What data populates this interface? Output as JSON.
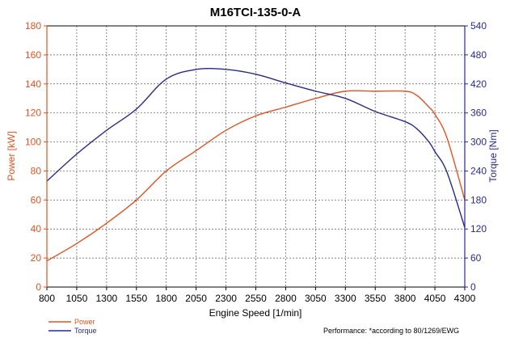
{
  "chart_data": {
    "type": "line",
    "title": "M16TCI-135-0-A",
    "xlabel": "Engine Speed [1/min]",
    "ylabel_left": "Power [kW]",
    "ylabel_right": "Torque [Nm]",
    "xlim": [
      800,
      4300
    ],
    "ylim_left": [
      0,
      180
    ],
    "ylim_right": [
      0,
      540
    ],
    "x_ticks": [
      800,
      1050,
      1300,
      1550,
      1800,
      2050,
      2300,
      2550,
      2800,
      3050,
      3300,
      3550,
      3800,
      4050,
      4300
    ],
    "y_ticks_left": [
      0,
      20,
      40,
      60,
      80,
      100,
      120,
      140,
      160,
      180
    ],
    "y_ticks_right": [
      0,
      60,
      120,
      180,
      240,
      300,
      360,
      420,
      480,
      540
    ],
    "grid": true,
    "legend_position": "bottom-left",
    "colors": {
      "power": "#e8501e",
      "torque": "#2a2a8c"
    },
    "series": [
      {
        "name": "Power",
        "axis": "left",
        "color": "#e8501e",
        "x": [
          800,
          1050,
          1300,
          1550,
          1800,
          2050,
          2300,
          2550,
          2800,
          3050,
          3300,
          3550,
          3800,
          3900,
          4000,
          4050,
          4150,
          4300
        ],
        "values": [
          18,
          30,
          44,
          60,
          80,
          94,
          108,
          118,
          124,
          130,
          135,
          135,
          135,
          132,
          124,
          119,
          103,
          60
        ]
      },
      {
        "name": "Torque",
        "axis": "right",
        "color": "#2a2a8c",
        "x": [
          800,
          1050,
          1300,
          1550,
          1800,
          2050,
          2300,
          2550,
          2800,
          3050,
          3300,
          3550,
          3800,
          3900,
          4000,
          4050,
          4150,
          4300
        ],
        "values": [
          219,
          275,
          324,
          368,
          430,
          450,
          450,
          440,
          422,
          405,
          390,
          363,
          342,
          327,
          300,
          280,
          238,
          123
        ]
      }
    ],
    "footnote": "Performance: *according to 80/1269/EWG"
  }
}
